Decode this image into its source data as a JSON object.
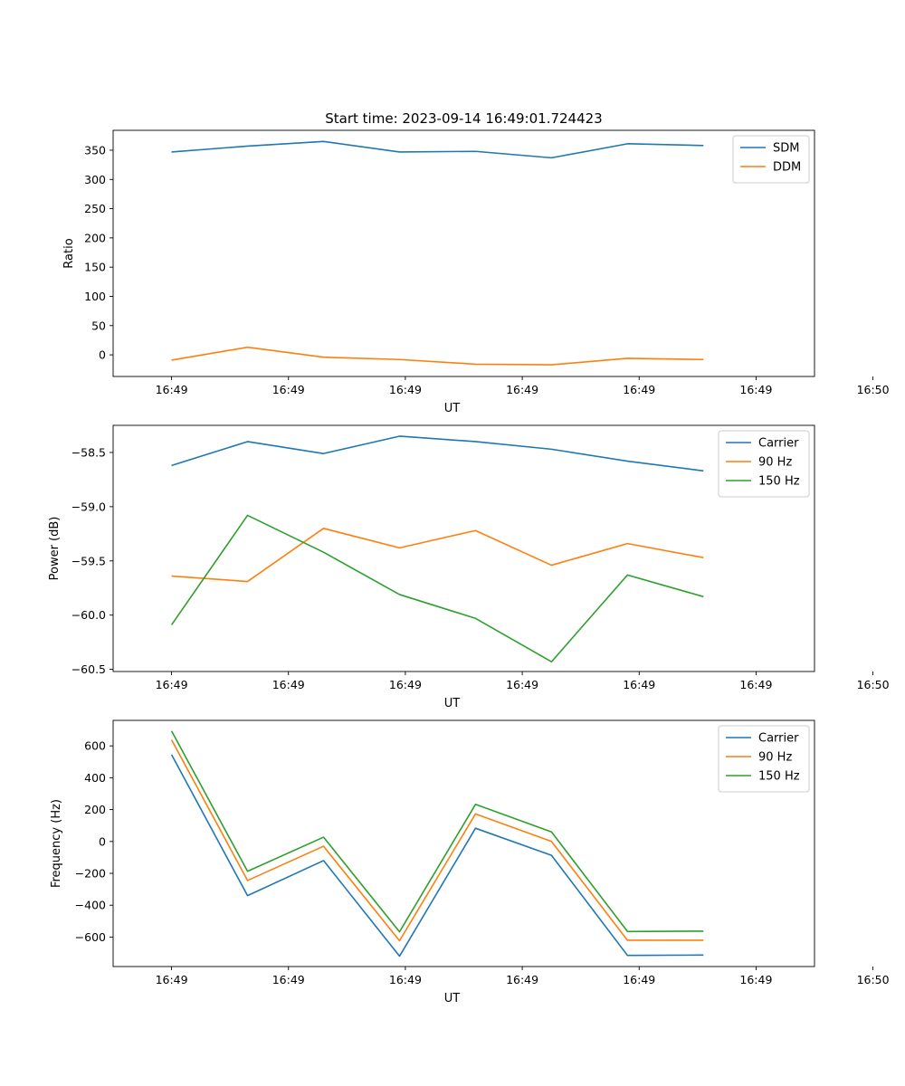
{
  "figure_title": "Start time: 2023-09-14 16:49:01.724423",
  "colors": {
    "blue": "#1f77b4",
    "orange": "#ff7f0e",
    "green": "#2ca02c"
  },
  "chart_data": [
    {
      "type": "line",
      "title": "Start time: 2023-09-14 16:49:01.724423",
      "xlabel": "UT",
      "ylabel": "Ratio",
      "xlim": [
        -0.5,
        5.5
      ],
      "ylim": [
        -37,
        384
      ],
      "x": [
        0,
        0.65,
        1.3,
        1.95,
        2.6,
        3.25,
        3.9,
        4.55
      ],
      "xticks": [
        0,
        1,
        2,
        3,
        4,
        5,
        6
      ],
      "xtick_labels": [
        "16:49",
        "16:49",
        "16:49",
        "16:49",
        "16:49",
        "16:49",
        "16:50"
      ],
      "yticks": [
        0,
        50,
        100,
        150,
        200,
        250,
        300,
        350
      ],
      "ytick_labels": [
        "0",
        "50",
        "100",
        "150",
        "200",
        "250",
        "300",
        "350"
      ],
      "legend_position": "top-right",
      "series": [
        {
          "name": "SDM",
          "color": "#1f77b4",
          "values": [
            347,
            357,
            365,
            347,
            348,
            337,
            361,
            358
          ]
        },
        {
          "name": "DDM",
          "color": "#ff7f0e",
          "values": [
            -9,
            13,
            -4,
            -8,
            -16,
            -17,
            -6,
            -8
          ]
        }
      ]
    },
    {
      "type": "line",
      "title": "",
      "xlabel": "UT",
      "ylabel": "Power (dB)",
      "xlim": [
        -0.5,
        5.5
      ],
      "ylim": [
        -60.52,
        -58.25
      ],
      "x": [
        0,
        0.65,
        1.3,
        1.95,
        2.6,
        3.25,
        3.9,
        4.55
      ],
      "xticks": [
        0,
        1,
        2,
        3,
        4,
        5,
        6
      ],
      "xtick_labels": [
        "16:49",
        "16:49",
        "16:49",
        "16:49",
        "16:49",
        "16:49",
        "16:50"
      ],
      "yticks": [
        -60.5,
        -60.0,
        -59.5,
        -59.0,
        -58.5
      ],
      "ytick_labels": [
        "−60.5",
        "−60.0",
        "−59.5",
        "−59.0",
        "−58.5"
      ],
      "legend_position": "top-right",
      "series": [
        {
          "name": "Carrier",
          "color": "#1f77b4",
          "values": [
            -58.62,
            -58.4,
            -58.51,
            -58.35,
            -58.4,
            -58.47,
            -58.58,
            -58.67
          ]
        },
        {
          "name": "90 Hz",
          "color": "#ff7f0e",
          "values": [
            -59.64,
            -59.69,
            -59.2,
            -59.38,
            -59.22,
            -59.54,
            -59.34,
            -59.47
          ]
        },
        {
          "name": "150 Hz",
          "color": "#2ca02c",
          "values": [
            -60.09,
            -59.08,
            -59.42,
            -59.81,
            -60.03,
            -60.43,
            -59.63,
            -59.83
          ]
        }
      ]
    },
    {
      "type": "line",
      "title": "",
      "xlabel": "UT",
      "ylabel": "Frequency (Hz)",
      "xlim": [
        -0.5,
        5.5
      ],
      "ylim": [
        -785,
        760
      ],
      "x": [
        0,
        0.65,
        1.3,
        1.95,
        2.6,
        3.25,
        3.9,
        4.55
      ],
      "xticks": [
        0,
        1,
        2,
        3,
        4,
        5,
        6
      ],
      "xtick_labels": [
        "16:49",
        "16:49",
        "16:49",
        "16:49",
        "16:49",
        "16:49",
        "16:50"
      ],
      "yticks": [
        -600,
        -400,
        -200,
        0,
        200,
        400,
        600
      ],
      "ytick_labels": [
        "−600",
        "−400",
        "−200",
        "0",
        "200",
        "400",
        "600"
      ],
      "legend_position": "top-right",
      "series": [
        {
          "name": "Carrier",
          "color": "#1f77b4",
          "values": [
            545,
            -340,
            -120,
            -720,
            83,
            -87,
            -715,
            -713
          ]
        },
        {
          "name": "90 Hz",
          "color": "#ff7f0e",
          "values": [
            638,
            -245,
            -30,
            -623,
            173,
            0,
            -620,
            -620
          ]
        },
        {
          "name": "150 Hz",
          "color": "#2ca02c",
          "values": [
            693,
            -187,
            27,
            -567,
            233,
            60,
            -565,
            -563
          ]
        }
      ]
    }
  ]
}
